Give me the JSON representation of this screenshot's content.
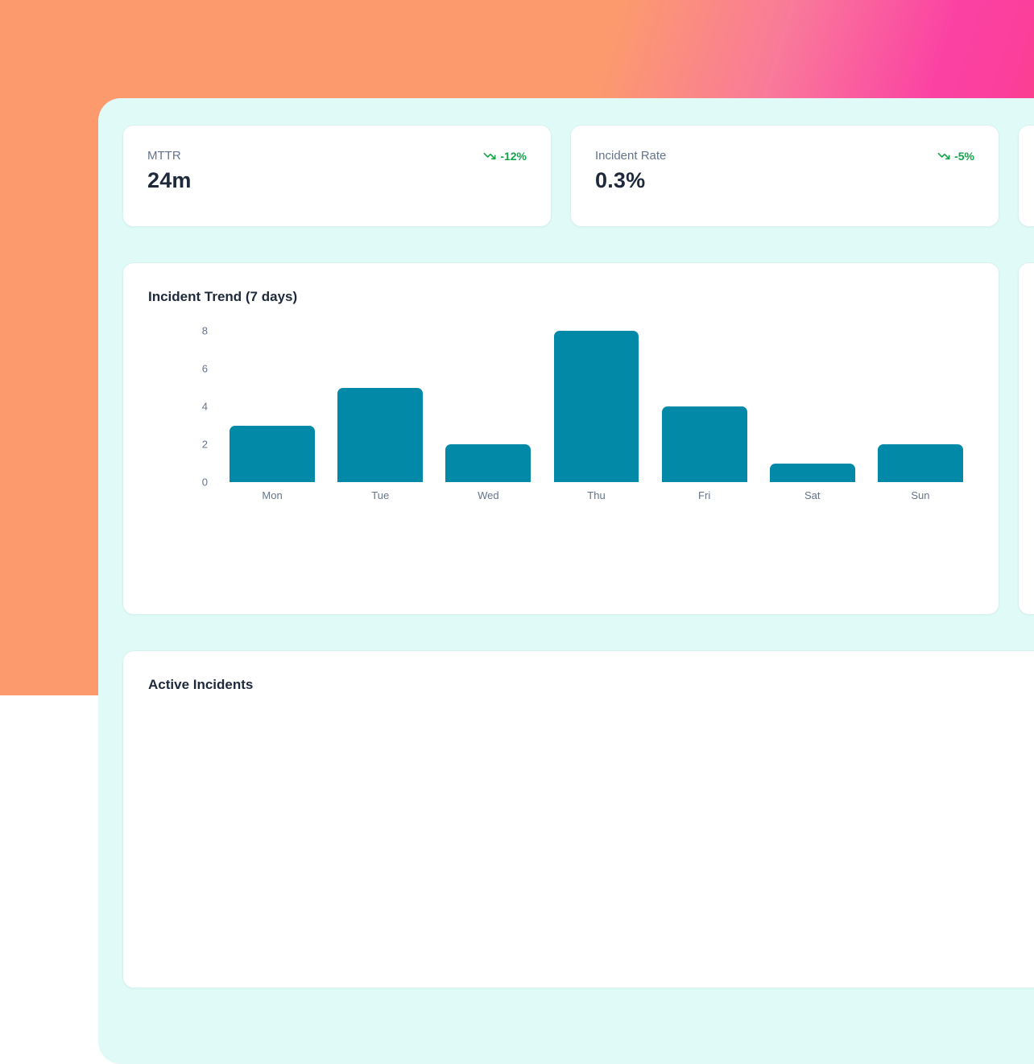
{
  "metrics": [
    {
      "label": "MTTR",
      "value": "24m",
      "delta": "-12%",
      "trend": "down"
    },
    {
      "label": "Incident Rate",
      "value": "0.3%",
      "delta": "-5%",
      "trend": "down"
    }
  ],
  "chart_card": {
    "title": "Incident Trend (7 days)"
  },
  "incidents_card": {
    "title": "Active Incidents"
  },
  "chart_data": {
    "type": "bar",
    "title": "Incident Trend (7 days)",
    "categories": [
      "Mon",
      "Tue",
      "Wed",
      "Thu",
      "Fri",
      "Sat",
      "Sun"
    ],
    "values": [
      3,
      5,
      2,
      8,
      4,
      1,
      2
    ],
    "xlabel": "",
    "ylabel": "",
    "yticks": [
      0,
      2,
      4,
      6,
      8
    ],
    "ylim": [
      0,
      8.3
    ],
    "grid": false,
    "legend": false,
    "bar_color": "#0389a8"
  },
  "colors": {
    "bar_teal": "#0389a8",
    "delta_green": "#16a34a",
    "panel_bg": "#e0faf7",
    "text_dark": "#1e293b",
    "text_muted": "#64748b",
    "gradient_orange": "#fc9a6e",
    "gradient_pink": "#fb3f9b",
    "gradient_red": "#fa4352"
  }
}
